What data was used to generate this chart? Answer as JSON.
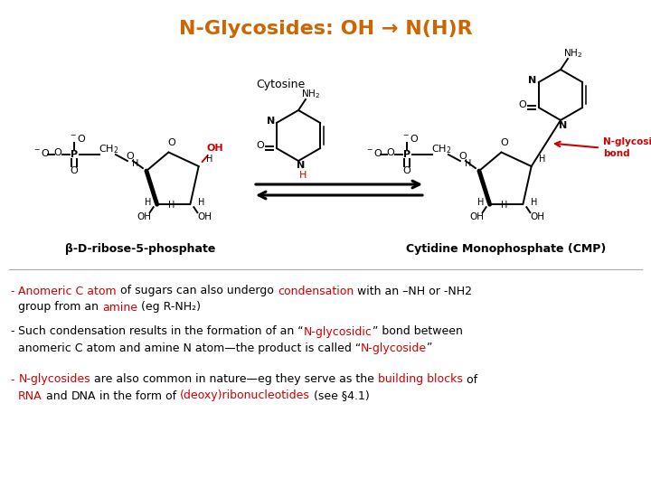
{
  "title": "N-Glycosides: OH → N(H)R",
  "title_color": "#CC6600",
  "title_fontsize": 16,
  "bg_color": "#ffffff",
  "label_beta_D": "β-D-ribose-5-phosphate",
  "label_CMP": "Cytidine Monophosphate (CMP)",
  "red": "#CC0000",
  "black": "#000000",
  "bullet1_line1_parts": [
    [
      "- ",
      "#CC0000"
    ],
    [
      "Anomeric C atom",
      "#CC0000"
    ],
    [
      " of sugars can also undergo ",
      "#000000"
    ],
    [
      "condensation",
      "#CC0000"
    ],
    [
      " with an –NH or -NH2",
      "#000000"
    ]
  ],
  "bullet1_line2_parts": [
    [
      "  group from an ",
      "#000000"
    ],
    [
      "amine",
      "#CC0000"
    ],
    [
      " (eg R-NH₂)",
      "#000000"
    ]
  ],
  "bullet2_line1_parts": [
    [
      "- ",
      "#000000"
    ],
    [
      "Such condensation results in the formation of an “",
      "#000000"
    ],
    [
      "N-glycosidic",
      "#CC0000"
    ],
    [
      "” bond between",
      "#000000"
    ]
  ],
  "bullet2_line2_parts": [
    [
      "  anomeric C atom and amine N atom—the product is called “",
      "#000000"
    ],
    [
      "N-glycoside",
      "#CC0000"
    ],
    [
      "”",
      "#000000"
    ]
  ],
  "bullet3_line1_parts": [
    [
      "- ",
      "#CC0000"
    ],
    [
      "N-glycosides",
      "#CC0000"
    ],
    [
      " are also common in nature—eg they serve as the ",
      "#000000"
    ],
    [
      "building blocks",
      "#CC0000"
    ],
    [
      " of",
      "#000000"
    ]
  ],
  "bullet3_line2_parts": [
    [
      "  ",
      "#000000"
    ],
    [
      "RNA",
      "#CC0000"
    ],
    [
      " and ",
      "#000000"
    ],
    [
      "DNA",
      "#000000"
    ],
    [
      " in the form of ",
      "#000000"
    ],
    [
      "(deoxy)ribonucleotides",
      "#CC0000"
    ],
    [
      " (see §4.1)",
      "#000000"
    ]
  ]
}
